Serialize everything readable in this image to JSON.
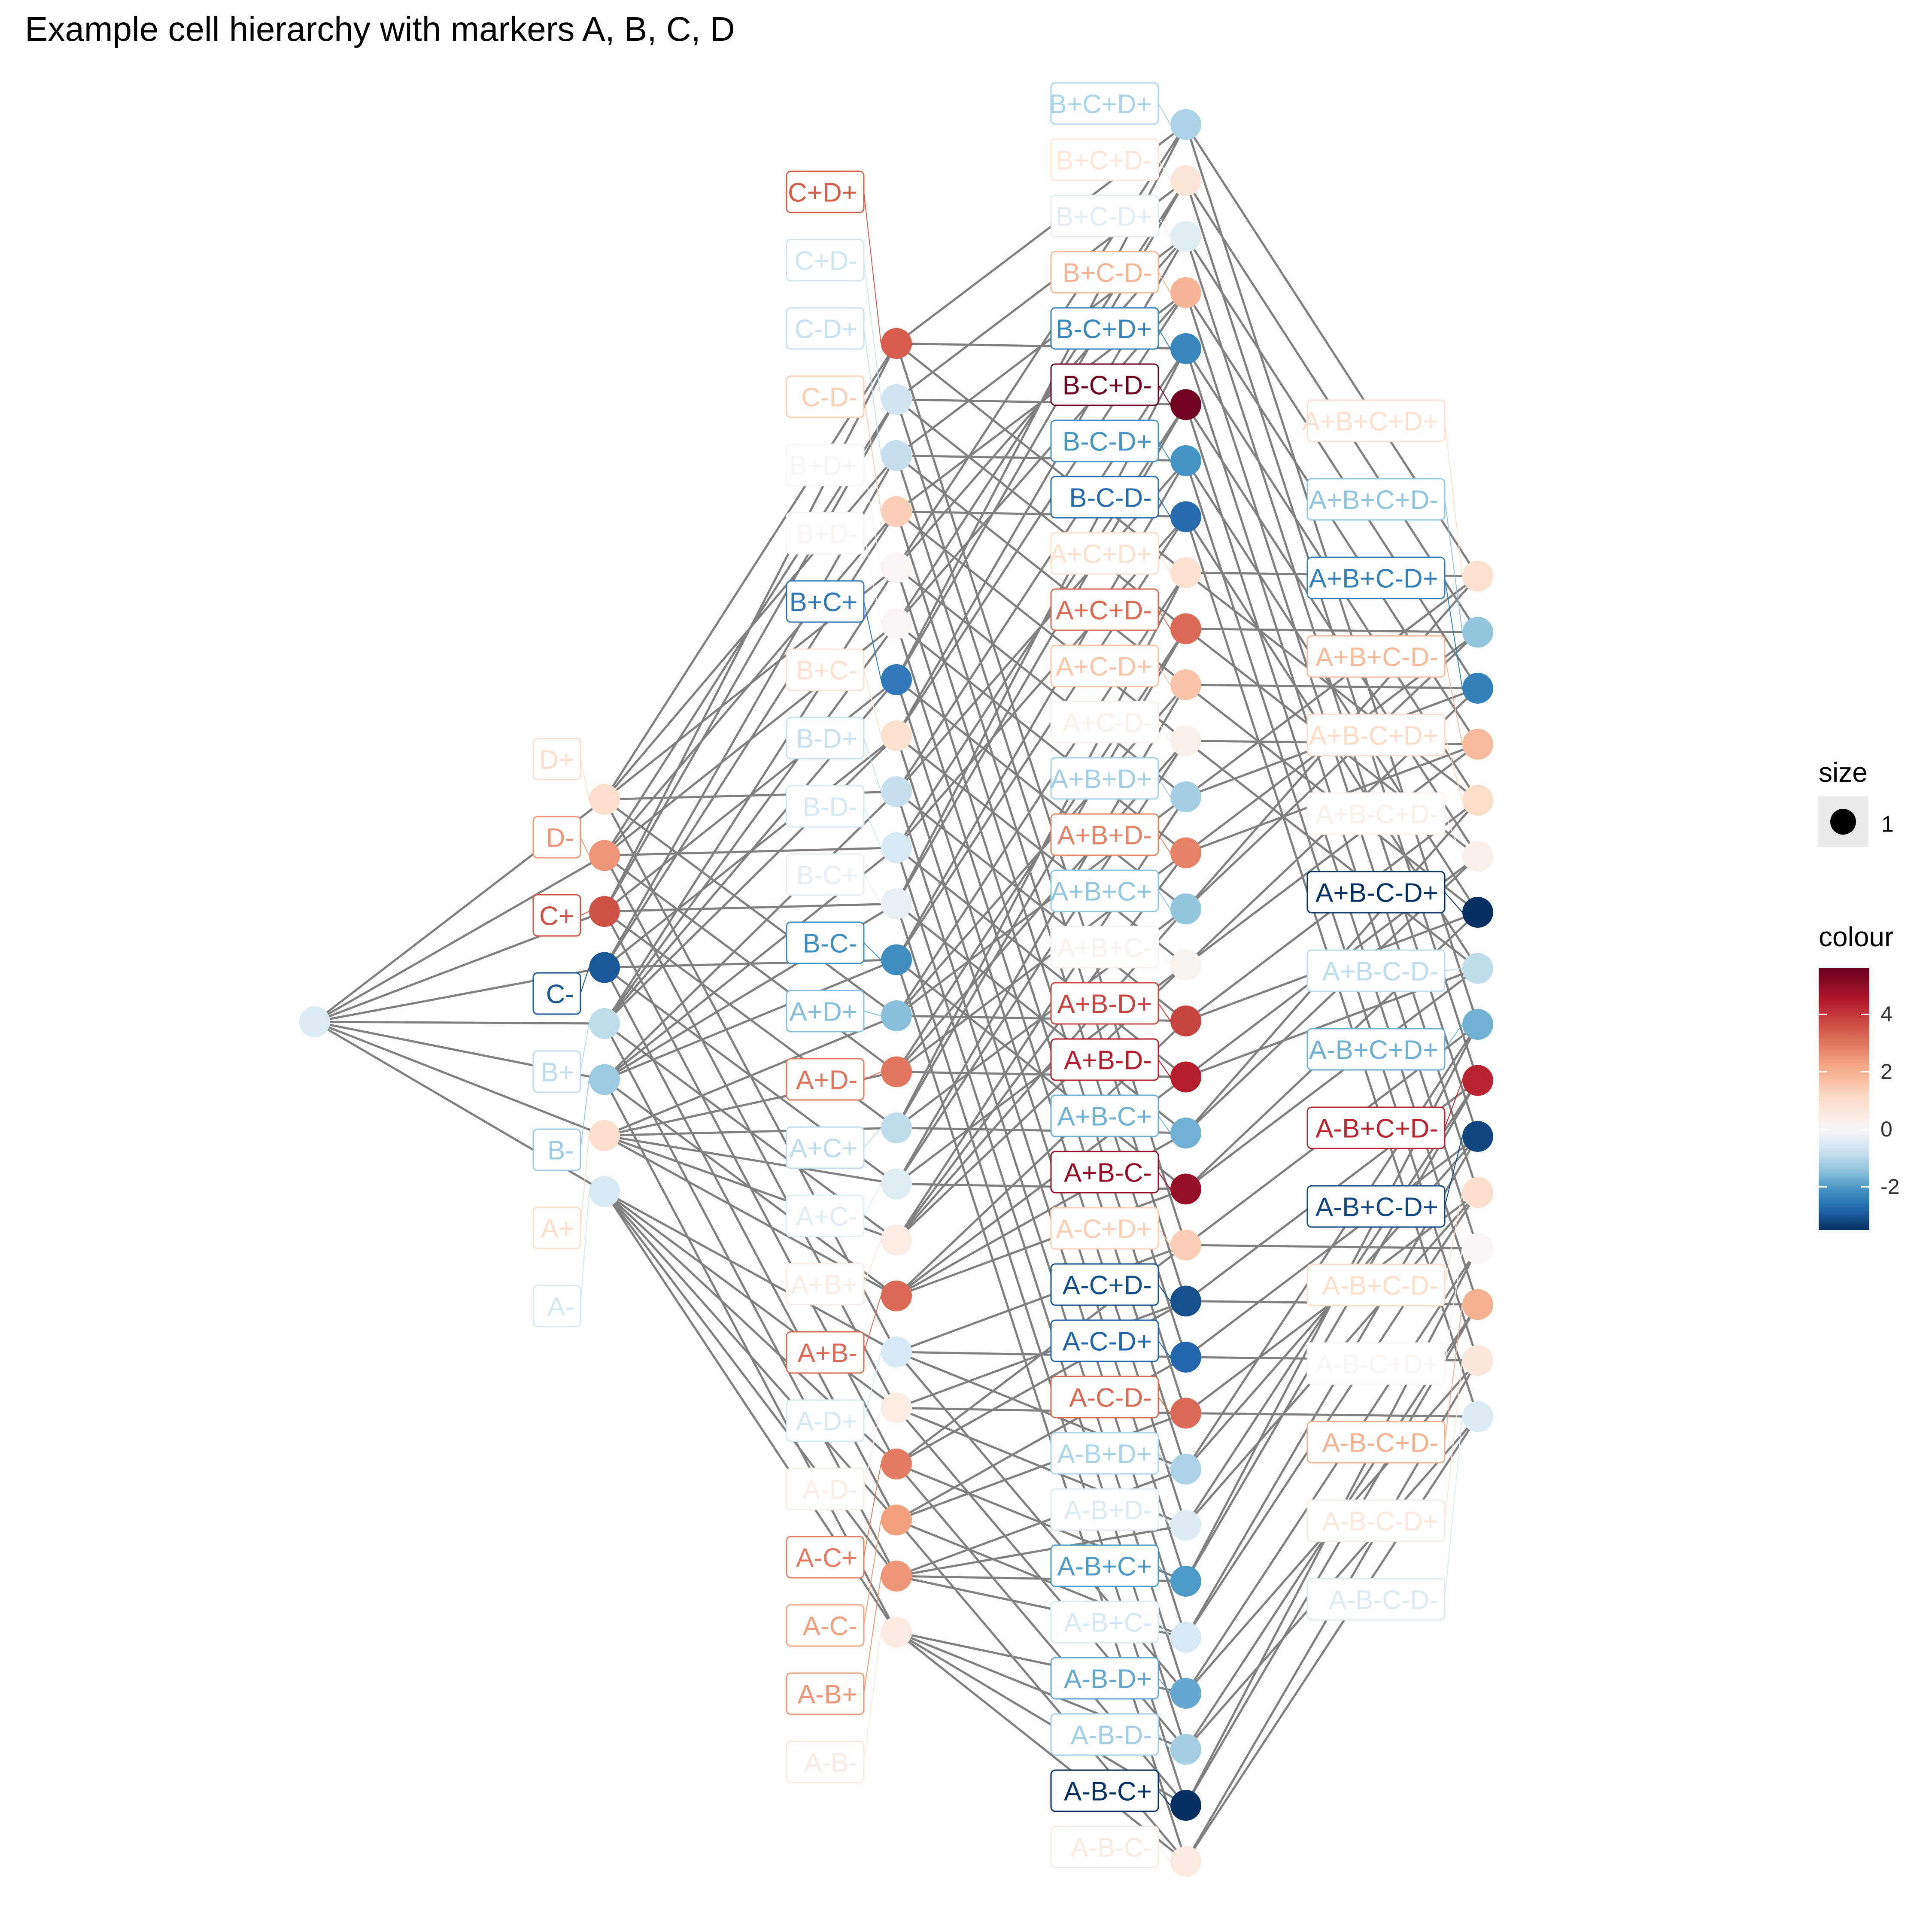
{
  "title": "Example cell hierarchy with markers A, B, C, D",
  "legend": {
    "size_title": "size",
    "size_label": "1",
    "colour_title": "colour",
    "colour_ticks": [
      "4",
      "2",
      "0",
      "-2"
    ],
    "colour_tick_values": [
      4,
      2,
      0,
      -2
    ],
    "colour_range": [
      -3.5,
      5.6
    ],
    "colour_scale": [
      "#053061",
      "#2166ac",
      "#4393c3",
      "#92c5de",
      "#d1e5f0",
      "#f7f7f7",
      "#fddbc7",
      "#f4a582",
      "#d6604d",
      "#b2182b",
      "#67001f"
    ]
  },
  "colors": {
    "edge": "#808080"
  },
  "root": {
    "value": -0.5
  },
  "levels": [
    [
      {
        "label": "D+",
        "value": 1.0
      },
      {
        "label": "D-",
        "value": 2.5
      },
      {
        "label": "C+",
        "value": 3.6
      },
      {
        "label": "C-",
        "value": -3.0
      },
      {
        "label": "B+",
        "value": -0.9
      },
      {
        "label": "B-",
        "value": -1.3
      },
      {
        "label": "A+",
        "value": 1.0
      },
      {
        "label": "A-",
        "value": -0.6
      }
    ],
    [
      {
        "label": "C+D+",
        "value": 3.4
      },
      {
        "label": "C+D-",
        "value": -0.7
      },
      {
        "label": "C-D+",
        "value": -0.8
      },
      {
        "label": "C-D-",
        "value": 1.4
      },
      {
        "label": "B+D+",
        "value": 0.1
      },
      {
        "label": "B+D-",
        "value": 0.1
      },
      {
        "label": "B+C+",
        "value": -2.5
      },
      {
        "label": "B+C-",
        "value": 0.9
      },
      {
        "label": "B-D+",
        "value": -0.8
      },
      {
        "label": "B-D-",
        "value": -0.6
      },
      {
        "label": "B-C+",
        "value": -0.3
      },
      {
        "label": "B-C-",
        "value": -2.2
      },
      {
        "label": "A+D+",
        "value": -1.5
      },
      {
        "label": "A+D-",
        "value": 3.0
      },
      {
        "label": "A+C+",
        "value": -0.9
      },
      {
        "label": "A+C-",
        "value": -0.4
      },
      {
        "label": "A+B+",
        "value": 0.4
      },
      {
        "label": "A+B-",
        "value": 3.2
      },
      {
        "label": "A-D+",
        "value": -0.6
      },
      {
        "label": "A-D-",
        "value": 0.4
      },
      {
        "label": "A-C+",
        "value": 2.9
      },
      {
        "label": "A-C-",
        "value": 2.3
      },
      {
        "label": "A-B+",
        "value": 2.5
      },
      {
        "label": "A-B-",
        "value": 0.5
      }
    ],
    [
      {
        "label": "B+C+D+",
        "value": -1.1
      },
      {
        "label": "B+C+D-",
        "value": 0.7
      },
      {
        "label": "B+C-D+",
        "value": -0.4
      },
      {
        "label": "B+C-D-",
        "value": 1.9
      },
      {
        "label": "B-C+D+",
        "value": -2.3
      },
      {
        "label": "B-C+D-",
        "value": 5.5
      },
      {
        "label": "B-C-D+",
        "value": -2.1
      },
      {
        "label": "B-C-D-",
        "value": -2.7
      },
      {
        "label": "A+C+D+",
        "value": 0.9
      },
      {
        "label": "A+C+D-",
        "value": 3.2
      },
      {
        "label": "A+C-D+",
        "value": 1.6
      },
      {
        "label": "A+C-D-",
        "value": 0.3
      },
      {
        "label": "A+B+D+",
        "value": -1.2
      },
      {
        "label": "A+B+D-",
        "value": 2.8
      },
      {
        "label": "A+B+C+",
        "value": -1.4
      },
      {
        "label": "A+B+C-",
        "value": 0.2
      },
      {
        "label": "A+B-D+",
        "value": 3.8
      },
      {
        "label": "A+B-D-",
        "value": 4.4
      },
      {
        "label": "A+B-C+",
        "value": -1.7
      },
      {
        "label": "A+B-C-",
        "value": 4.9
      },
      {
        "label": "A-C+D+",
        "value": 1.4
      },
      {
        "label": "A-C+D-",
        "value": -3.1
      },
      {
        "label": "A-C-D+",
        "value": -2.8
      },
      {
        "label": "A-C-D-",
        "value": 3.2
      },
      {
        "label": "A-B+D+",
        "value": -1.1
      },
      {
        "label": "A-B+D-",
        "value": -0.5
      },
      {
        "label": "A-B+C+",
        "value": -2.0
      },
      {
        "label": "A-B+C-",
        "value": -0.6
      },
      {
        "label": "A-B-D+",
        "value": -1.8
      },
      {
        "label": "A-B-D-",
        "value": -1.2
      },
      {
        "label": "A-B-C+",
        "value": -3.6
      },
      {
        "label": "A-B-C-",
        "value": 0.5
      }
    ],
    [
      {
        "label": "A+B+C+D+",
        "value": 0.9
      },
      {
        "label": "A+B+C+D-",
        "value": -1.4
      },
      {
        "label": "A+B+C-D+",
        "value": -2.4
      },
      {
        "label": "A+B+C-D-",
        "value": 1.8
      },
      {
        "label": "A+B-C+D+",
        "value": 1.1
      },
      {
        "label": "A+B-C+D-",
        "value": 0.3
      },
      {
        "label": "A+B-C-D+",
        "value": -3.7
      },
      {
        "label": "A+B-C-D-",
        "value": -0.9
      },
      {
        "label": "A-B+C+D+",
        "value": -1.7
      },
      {
        "label": "A-B+C+D-",
        "value": 4.3
      },
      {
        "label": "A-B+C-D+",
        "value": -3.2
      },
      {
        "label": "A-B+C-D-",
        "value": 1.0
      },
      {
        "label": "A-B-C+D+",
        "value": 0.1
      },
      {
        "label": "A-B-C+D-",
        "value": 2.0
      },
      {
        "label": "A-B-C-D+",
        "value": 0.6
      },
      {
        "label": "A-B-C-D-",
        "value": -0.5
      }
    ]
  ]
}
